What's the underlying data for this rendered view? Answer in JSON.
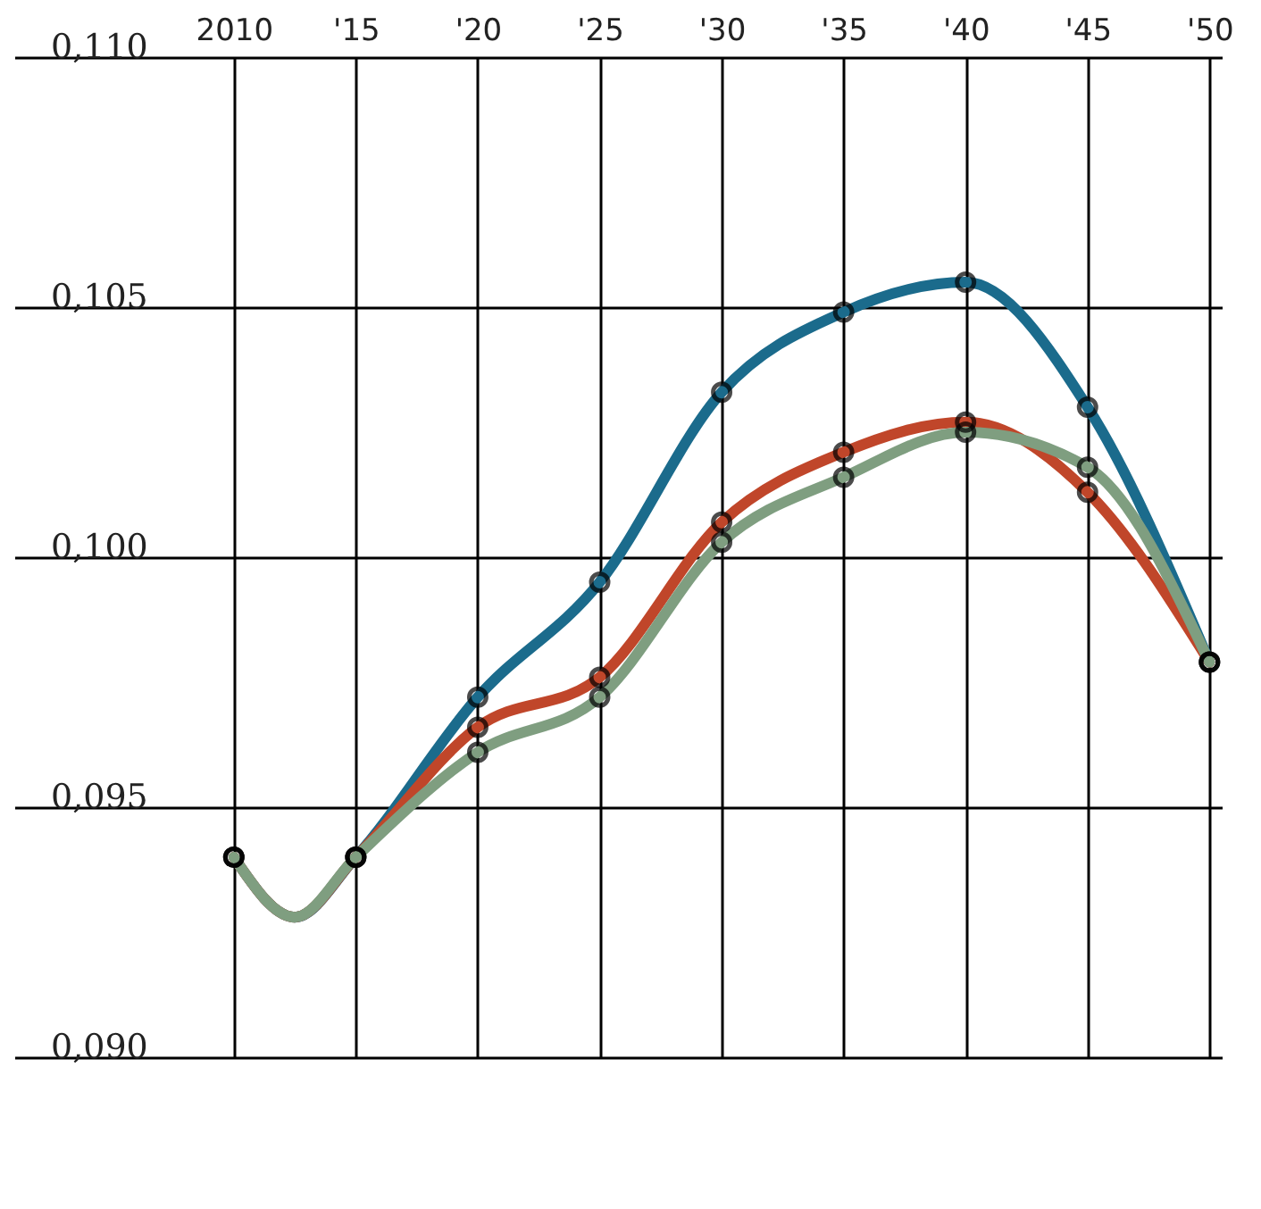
{
  "chart_data": {
    "type": "line",
    "x": [
      2010,
      2012.5,
      2015,
      2020,
      2025,
      2030,
      2035,
      2040,
      2045,
      2050
    ],
    "series": [
      {
        "color": "#1b6b8c",
        "values": [
          0.094,
          0.0928,
          0.094,
          0.0972,
          0.0995,
          0.1033,
          0.1049,
          0.1055,
          0.103,
          0.0979
        ]
      },
      {
        "color": "#c0462a",
        "values": [
          0.094,
          0.0928,
          0.094,
          0.0966,
          0.0976,
          0.1007,
          0.1021,
          0.1027,
          0.1013,
          0.0979
        ]
      },
      {
        "color": "#7f9e80",
        "values": [
          0.094,
          0.0928,
          0.094,
          0.0961,
          0.0972,
          0.1003,
          0.1016,
          0.1025,
          0.1018,
          0.0979
        ]
      }
    ],
    "xlim": [
      2001,
      2050.5
    ],
    "xticks": [
      {
        "value": 2010,
        "label": "2010"
      },
      {
        "value": 2015,
        "label": "'15"
      },
      {
        "value": 2020,
        "label": "'20"
      },
      {
        "value": 2025,
        "label": "'25"
      },
      {
        "value": 2030,
        "label": "'30"
      },
      {
        "value": 2035,
        "label": "'35"
      },
      {
        "value": 2040,
        "label": "'40"
      },
      {
        "value": 2045,
        "label": "'45"
      },
      {
        "value": 2050,
        "label": "'50"
      }
    ],
    "ylim": [
      0.09,
      0.11
    ],
    "yticks": [
      {
        "value": 0.09,
        "label": "0,090"
      },
      {
        "value": 0.095,
        "label": "0,095"
      },
      {
        "value": 0.1,
        "label": "0,100"
      },
      {
        "value": 0.105,
        "label": "0,105"
      },
      {
        "value": 0.11,
        "label": "0,110"
      }
    ],
    "grid": true,
    "marker": "circle",
    "line_style": "solid",
    "legend": false
  }
}
